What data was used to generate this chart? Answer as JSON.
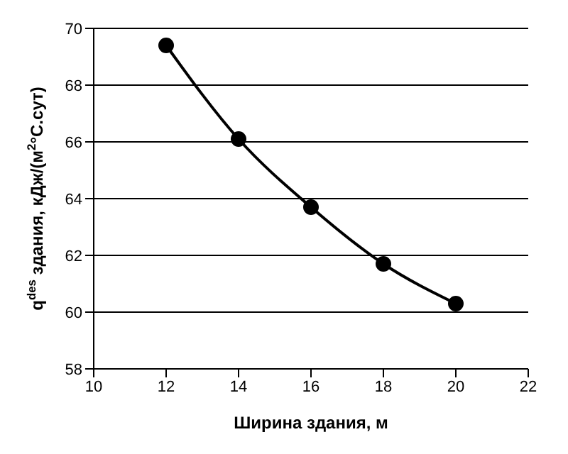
{
  "chart_data": {
    "type": "line",
    "xlabel": "Ширина здания, м",
    "ylabel": "q$^{des}$ здания, кДж/(м$^{2}$°С.сут)",
    "x": [
      12,
      14,
      16,
      18,
      20
    ],
    "series": [
      {
        "color": "#000000",
        "values": [
          69.4,
          66.1,
          63.7,
          61.7,
          60.3
        ]
      }
    ],
    "xlim": [
      10,
      22
    ],
    "xticks": [
      10,
      12,
      14,
      16,
      18,
      20,
      22
    ],
    "ylim": [
      58,
      70
    ],
    "yticks": [
      58,
      60,
      62,
      64,
      66,
      68,
      70
    ],
    "grid": "y",
    "marker": "circle",
    "line_style": "solid",
    "legend": false
  }
}
